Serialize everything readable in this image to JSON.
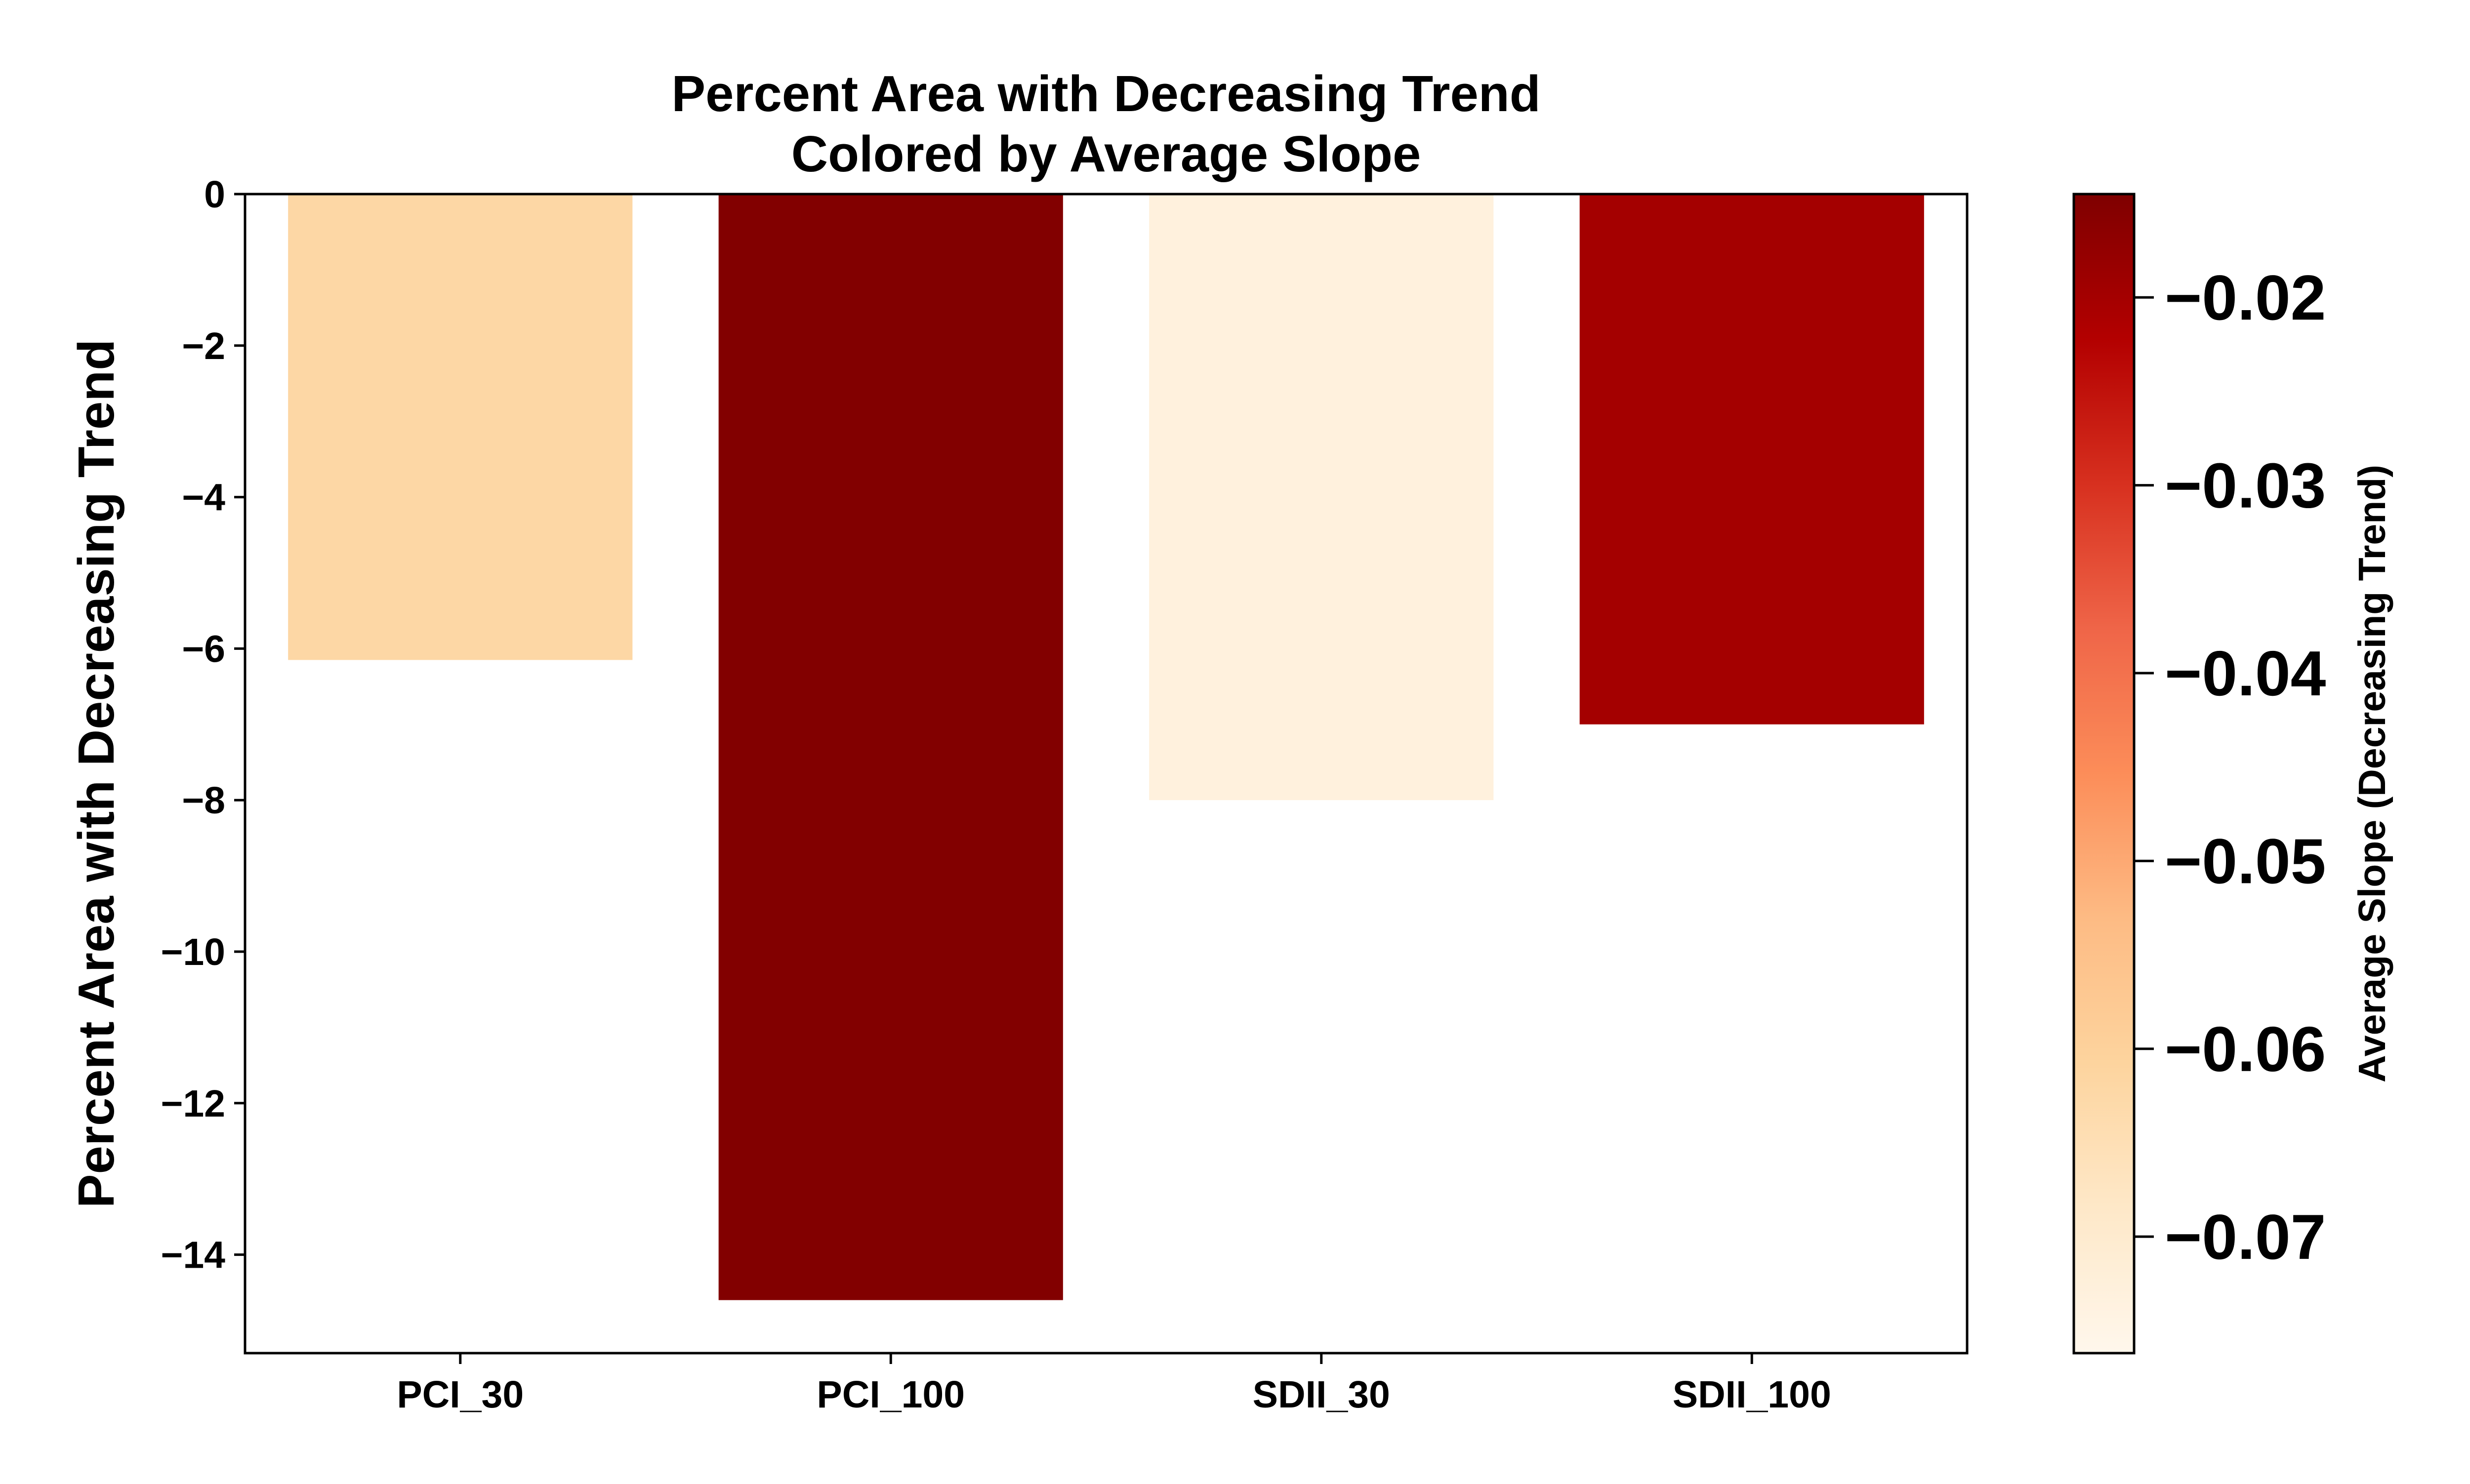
{
  "chart_data": {
    "type": "bar",
    "title": [
      "Percent Area with Decreasing Trend",
      "Colored by Average Slope"
    ],
    "xlabel": "",
    "ylabel": "Percent Area with Decreasing Trend",
    "categories": [
      "PCI_30",
      "PCI_100",
      "SDII_30",
      "SDII_100"
    ],
    "values": [
      -6.15,
      -14.6,
      -8.0,
      -7.0
    ],
    "color_values": [
      -0.062,
      -0.015,
      -0.073,
      -0.02
    ],
    "ylim": [
      -15.3,
      0
    ],
    "yticks": [
      0,
      -2,
      -4,
      -6,
      -8,
      -10,
      -12,
      -14
    ],
    "ytick_labels": [
      "0",
      "−2",
      "−4",
      "−6",
      "−8",
      "−10",
      "−12",
      "−14"
    ],
    "grid": false,
    "legend": "none",
    "colorbar": {
      "label": "Average Slope (Decreasing Trend)",
      "colormap": "OrRd",
      "range": [
        -0.0762,
        -0.0145
      ],
      "ticks": [
        -0.02,
        -0.03,
        -0.04,
        -0.05,
        -0.06,
        -0.07
      ],
      "tick_labels": [
        "−0.02",
        "−0.03",
        "−0.04",
        "−0.05",
        "−0.06",
        "−0.07"
      ],
      "stops": [
        "#fff7ec",
        "#fee8c8",
        "#fdd49e",
        "#fdbb84",
        "#fc8d59",
        "#ef6548",
        "#d7301f",
        "#b30000",
        "#7f0000"
      ]
    }
  }
}
